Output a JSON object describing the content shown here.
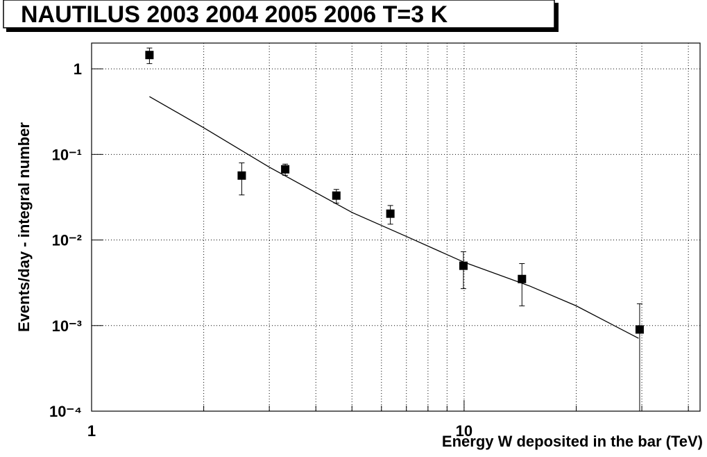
{
  "chart_data": {
    "type": "scatter",
    "title": "NAUTILUS 2003 2004 2005 2006 T=3 K",
    "xlabel": "Energy W deposited in the bar (TeV)",
    "ylabel": "Events/day - integral number",
    "xlog": true,
    "ylog": true,
    "grid": true,
    "xlim": [
      1,
      43
    ],
    "ylim": [
      0.0001,
      2
    ],
    "xticks": [
      1,
      10
    ],
    "xminor": [
      2,
      3,
      4,
      5,
      6,
      7,
      8,
      9,
      20,
      30,
      40
    ],
    "yticks": [
      {
        "value": 0.0001,
        "label": "10⁻⁴"
      },
      {
        "value": 0.001,
        "label": "10⁻³"
      },
      {
        "value": 0.01,
        "label": "10⁻²"
      },
      {
        "value": 0.1,
        "label": "10⁻¹"
      },
      1
    ],
    "color": "#000000",
    "points": {
      "x": [
        1.43,
        2.53,
        3.31,
        4.54,
        6.34,
        9.96,
        14.3,
        29.6
      ],
      "values": [
        1.45,
        0.0566,
        0.067,
        0.033,
        0.0203,
        0.005,
        0.0035,
        0.0009
      ],
      "errors": [
        0.3,
        0.023,
        0.01,
        0.006,
        0.005,
        0.0023,
        0.0018,
        0.0009
      ]
    },
    "fit": {
      "x": [
        1.43,
        2,
        3,
        5,
        7,
        10,
        15,
        20,
        29.4
      ],
      "values": [
        0.474,
        0.205,
        0.071,
        0.021,
        0.011,
        0.0055,
        0.0029,
        0.0017,
        0.00071
      ]
    }
  }
}
